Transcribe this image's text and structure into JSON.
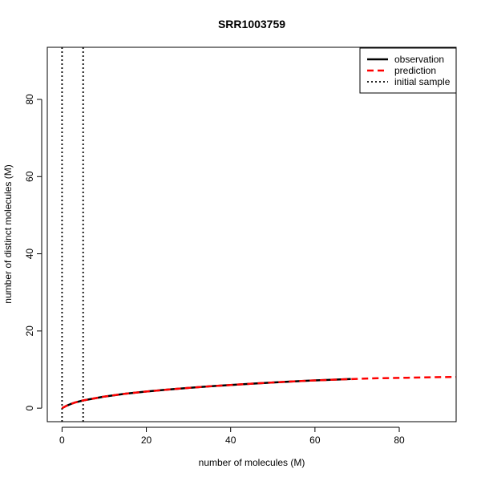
{
  "chart_data": {
    "type": "line",
    "title": "SRR1003759",
    "xlabel": "number of molecules (M)",
    "ylabel": "number of distinct molecules (M)",
    "xlim": [
      -3.5,
      93.5
    ],
    "ylim": [
      -3.5,
      93.5
    ],
    "xticks": [
      0,
      20,
      40,
      60,
      80
    ],
    "yticks": [
      0,
      20,
      40,
      60,
      80
    ],
    "legend_position": "top-right",
    "series": [
      {
        "name": "observation",
        "style": "solid",
        "color": "#000000",
        "x": [
          0,
          1,
          2,
          3,
          5,
          8,
          10,
          15,
          20,
          25,
          30,
          35,
          40,
          45,
          50,
          55,
          60,
          65,
          68.5
        ],
        "y": [
          0,
          0.6,
          1.05,
          1.45,
          2.0,
          2.6,
          3.0,
          3.75,
          4.3,
          4.8,
          5.25,
          5.65,
          6.0,
          6.35,
          6.65,
          6.95,
          7.2,
          7.4,
          7.55
        ]
      },
      {
        "name": "prediction",
        "style": "dashed",
        "color": "#ff0000",
        "x": [
          0,
          1,
          2,
          3,
          5,
          8,
          10,
          15,
          20,
          25,
          30,
          35,
          40,
          45,
          50,
          55,
          60,
          65,
          70,
          75,
          80,
          85,
          90,
          93.5
        ],
        "y": [
          0,
          0.6,
          1.05,
          1.45,
          2.0,
          2.6,
          3.0,
          3.75,
          4.3,
          4.8,
          5.25,
          5.65,
          6.0,
          6.35,
          6.65,
          6.95,
          7.2,
          7.4,
          7.6,
          7.75,
          7.85,
          7.95,
          8.05,
          8.1
        ]
      },
      {
        "name": "initial sample",
        "style": "dotted",
        "color": "#000000",
        "vlines": [
          0,
          5
        ]
      }
    ]
  }
}
